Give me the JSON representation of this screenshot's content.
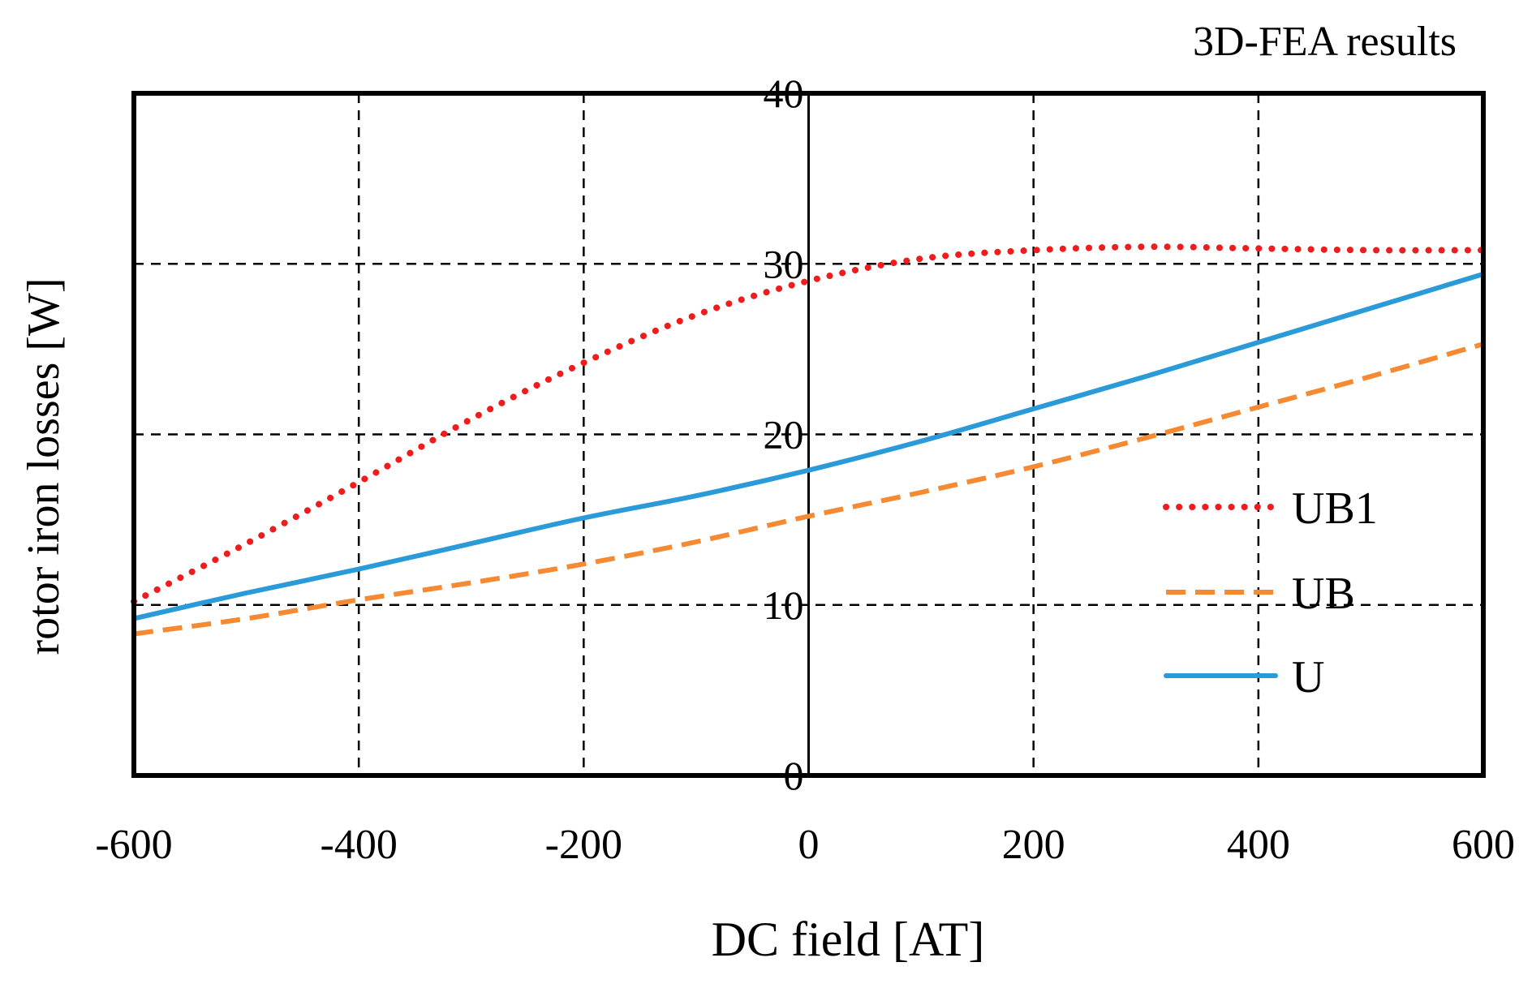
{
  "chart_data": {
    "type": "line",
    "title": "3D-FEA results",
    "xlabel": "DC field [AT]",
    "ylabel": "rotor iron losses [W]",
    "xlim": [
      -600,
      600
    ],
    "ylim": [
      0,
      40
    ],
    "xticks": [
      -600,
      -400,
      -200,
      0,
      200,
      400,
      600
    ],
    "yticks": [
      0,
      10,
      20,
      30,
      40
    ],
    "grid": true,
    "legend_position": "right",
    "x": [
      -600,
      -500,
      -400,
      -300,
      -200,
      -100,
      0,
      100,
      200,
      300,
      400,
      500,
      600
    ],
    "series": [
      {
        "name": "UB1",
        "style": "dotted",
        "color": "#ee1c1c",
        "values": [
          10.2,
          13.6,
          17.2,
          20.9,
          24.2,
          27.0,
          29.0,
          30.3,
          30.8,
          31.0,
          30.9,
          30.8,
          30.8
        ]
      },
      {
        "name": "UB",
        "style": "dashed",
        "color": "#f58a32",
        "values": [
          8.3,
          9.2,
          10.3,
          11.3,
          12.4,
          13.7,
          15.2,
          16.6,
          18.1,
          19.8,
          21.6,
          23.4,
          25.3
        ]
      },
      {
        "name": "U",
        "style": "solid",
        "color": "#2a9ad8",
        "values": [
          9.2,
          10.7,
          12.1,
          13.6,
          15.1,
          16.4,
          17.9,
          19.6,
          21.5,
          23.4,
          25.4,
          27.4,
          29.4
        ]
      }
    ]
  }
}
